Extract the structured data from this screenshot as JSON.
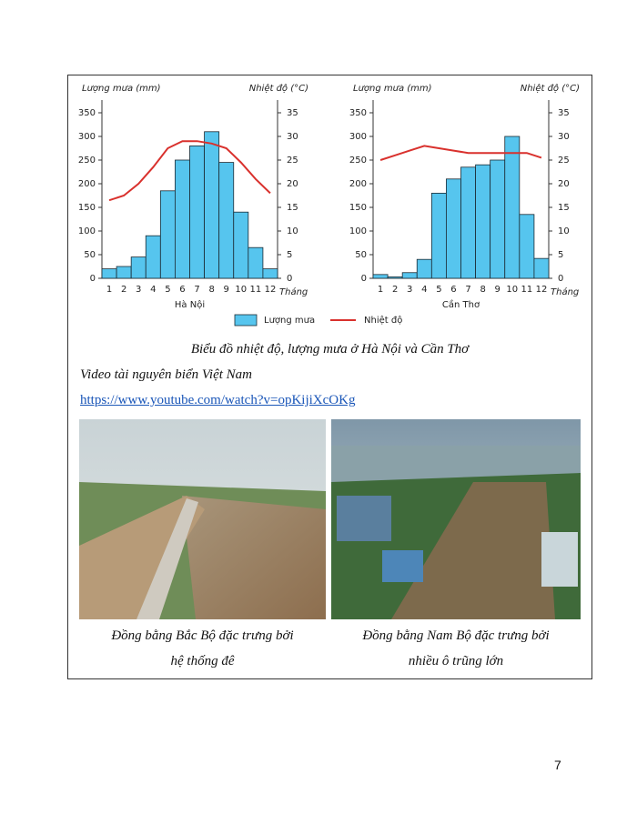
{
  "chart_data": [
    {
      "type": "bar-line",
      "title": "Hà Nội",
      "ylabel": "Lượng mưa (mm)",
      "y2label": "Nhiệt độ (°C)",
      "xlabel": "Tháng",
      "categories": [
        "1",
        "2",
        "3",
        "4",
        "5",
        "6",
        "7",
        "8",
        "9",
        "10",
        "11",
        "12"
      ],
      "series": [
        {
          "name": "Lượng mưa",
          "color": "#56c5ee",
          "values": [
            20,
            25,
            45,
            90,
            185,
            250,
            280,
            310,
            245,
            140,
            65,
            20
          ]
        },
        {
          "name": "Nhiệt độ",
          "color": "#d9312d",
          "axis": "y2",
          "values": [
            16.5,
            17.5,
            20,
            23.5,
            27.5,
            29,
            29,
            28.5,
            27.5,
            24.5,
            21,
            18
          ]
        }
      ],
      "ylim": [
        0,
        350
      ],
      "yticks": [
        0,
        50,
        100,
        150,
        200,
        250,
        300,
        350
      ],
      "y2lim": [
        0,
        35
      ],
      "y2ticks": [
        0,
        5,
        10,
        15,
        20,
        25,
        30,
        35
      ]
    },
    {
      "type": "bar-line",
      "title": "Cần Thơ",
      "ylabel": "Lượng mưa (mm)",
      "y2label": "Nhiệt độ (°C)",
      "xlabel": "Tháng",
      "categories": [
        "1",
        "2",
        "3",
        "4",
        "5",
        "6",
        "7",
        "8",
        "9",
        "10",
        "11",
        "12"
      ],
      "series": [
        {
          "color": "#56c5ee",
          "values": [
            8,
            3,
            12,
            40,
            180,
            210,
            235,
            240,
            250,
            300,
            135,
            42
          ]
        },
        {
          "color": "#d9312d",
          "axis": "y2",
          "values": [
            25,
            26,
            27,
            28,
            27.5,
            27,
            26.5,
            26.5,
            26.5,
            26.5,
            26.5,
            25.5
          ]
        }
      ],
      "ylim": [
        0,
        350
      ],
      "yticks": [
        0,
        50,
        100,
        150,
        200,
        250,
        300,
        350
      ],
      "y2lim": [
        0,
        35
      ],
      "y2ticks": [
        0,
        5,
        10,
        15,
        20,
        25,
        30,
        35
      ]
    }
  ],
  "caption": "Biểu đồ nhiệt độ, lượng mưa ở Hà Nội và Cần Thơ",
  "video_title": "Video tài nguyên biển Việt Nam",
  "link": "https://www.youtube.com/watch?v=opKijiXcOKg",
  "photos": [
    {
      "caption_line1": "Đồng bằng Bắc Bộ đặc trưng bởi",
      "caption_line2": "hệ thống đê"
    },
    {
      "caption_line1": "Đồng bằng Nam Bộ đặc trưng bởi",
      "caption_line2": "nhiều ô trũng lớn"
    }
  ],
  "page_number": "7"
}
